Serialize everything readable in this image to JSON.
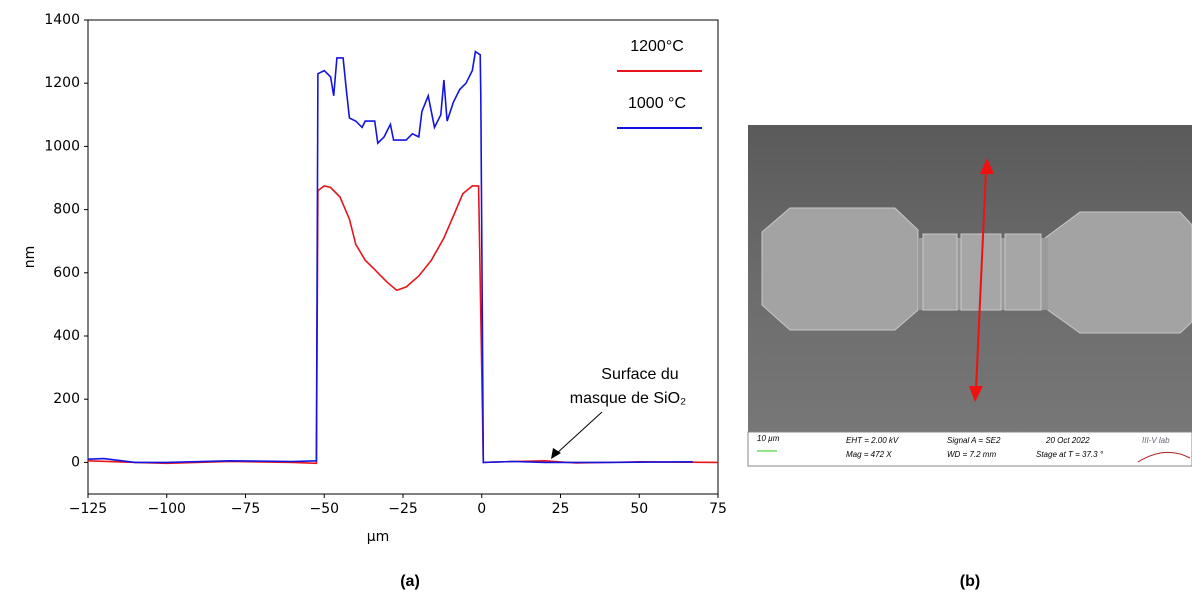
{
  "chart_data": {
    "type": "line",
    "xlabel": "µm",
    "ylabel": "nm",
    "xlim": [
      -125,
      75
    ],
    "ylim": [
      -100,
      1400
    ],
    "xticks": [
      {
        "value": -125,
        "label": "−125"
      },
      {
        "value": -100,
        "label": "−100"
      },
      {
        "value": -75,
        "label": "−75"
      },
      {
        "value": -50,
        "label": "−50"
      },
      {
        "value": -25,
        "label": "−25"
      },
      0,
      25,
      50,
      75
    ],
    "yticks": [
      0,
      200,
      400,
      600,
      800,
      1000,
      1200,
      1400
    ],
    "legend": "upper right",
    "series": [
      {
        "name": "1200°C",
        "color": "#e8141c",
        "x": [
          -125,
          -110,
          -100,
          -80,
          -60,
          -52.5,
          -52,
          -50,
          -48,
          -45,
          -42,
          -40,
          -37,
          -34,
          -30,
          -27,
          -24,
          -20,
          -16,
          -12,
          -9,
          -6,
          -3,
          -1,
          0.5,
          10,
          20,
          30,
          50,
          75
        ],
        "values": [
          5,
          0,
          -3,
          3,
          0,
          -3,
          860,
          875,
          870,
          840,
          770,
          690,
          640,
          610,
          570,
          545,
          555,
          590,
          640,
          710,
          780,
          850,
          875,
          875,
          0,
          3,
          5,
          -2,
          2,
          0
        ]
      },
      {
        "name": "1000 °C",
        "color": "#1414e0",
        "x": [
          -125,
          -120,
          -110,
          -100,
          -80,
          -60,
          -52.5,
          -52,
          -50,
          -48,
          -47,
          -46,
          -44,
          -43,
          -42,
          -40,
          -38,
          -37,
          -34,
          -33,
          -31,
          -29,
          -28,
          -24,
          -22,
          -20,
          -19,
          -17,
          -15,
          -13,
          -12,
          -11,
          -9,
          -7,
          -5,
          -3,
          -2,
          -0.5,
          -0.3,
          0.5,
          10,
          20,
          40,
          67
        ],
        "values": [
          10,
          12,
          0,
          0,
          5,
          3,
          5,
          1230,
          1240,
          1220,
          1160,
          1280,
          1280,
          1180,
          1090,
          1080,
          1060,
          1080,
          1080,
          1010,
          1030,
          1070,
          1020,
          1020,
          1040,
          1030,
          1110,
          1160,
          1060,
          1100,
          1210,
          1080,
          1140,
          1180,
          1200,
          1240,
          1300,
          1290,
          1160,
          0,
          3,
          0,
          0,
          2
        ]
      }
    ],
    "annotation": [
      "Surface du",
      "masque de SiO₂"
    ]
  },
  "image": {
    "scale": "10 µm",
    "eht": "EHT = 2.00 kV",
    "mag": "Mag = 472 X",
    "signal": "Signal A = SE2",
    "wd": "WD = 7.2 mm",
    "date": "20 Oct 2022",
    "stage": "Stage at T = 37.3 °",
    "logo": "III-V lab"
  },
  "panel_labels": [
    "(a)",
    "(b)"
  ]
}
